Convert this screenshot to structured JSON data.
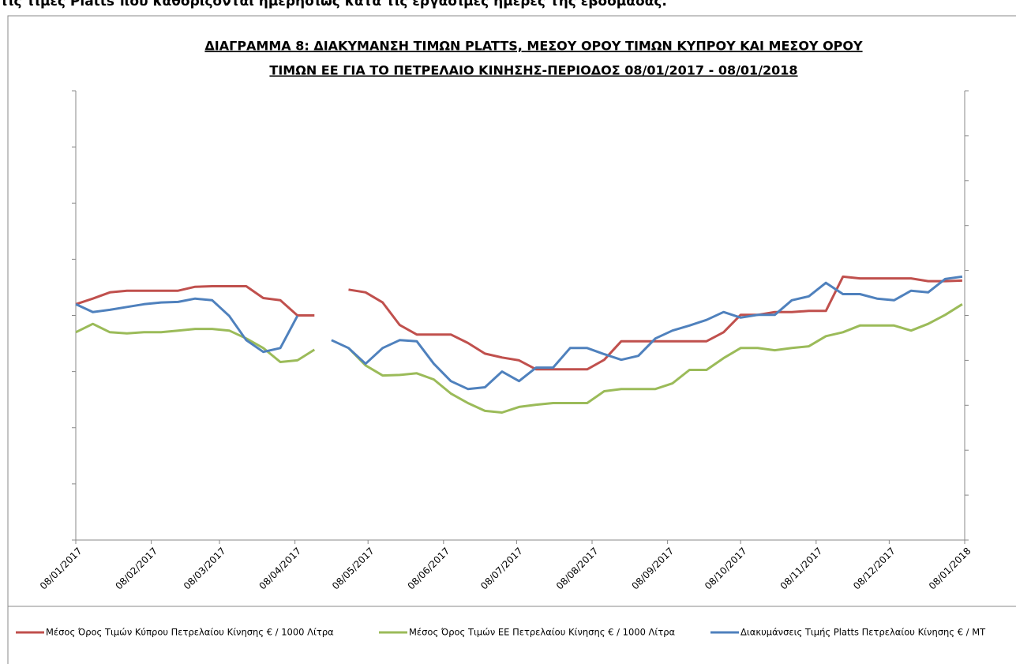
{
  "header": "τις τιμές Platts που καθορίζονται ημερησίως κατά τις εργάσιμες ημέρες της εβδομάδας.",
  "chart_data": {
    "type": "line",
    "title": [
      "ΔΙΑΓΡΑΜΜΑ 8: ΔΙΑΚΥΜΑΝΣΗ ΤΙΜΩΝ PLATTS, ΜΕΣΟΥ ΟΡΟΥ ΤΙΜΩΝ ΚΥΠΡΟΥ ΚΑΙ ΜΕΣΟΥ ΟΡΟΥ",
      "ΤΙΜΩΝ ΕΕ ΓΙΑ ΤΟ ΠΕΤΡΕΛΑΙΟ ΚΙΝΗΣΗΣ-ΠΕΡΙΟΔΟΣ  08/01/2017 - 08/01/2018"
    ],
    "x": [
      "08/01/2017",
      "15/01/2017",
      "22/01/2017",
      "29/01/2017",
      "05/02/2017",
      "12/02/2017",
      "19/02/2017",
      "26/02/2017",
      "05/03/2017",
      "12/03/2017",
      "19/03/2017",
      "26/03/2017",
      "02/04/2017",
      "09/04/2017",
      "16/04/2017",
      "23/04/2017",
      "30/04/2017",
      "07/05/2017",
      "14/05/2017",
      "21/05/2017",
      "28/05/2017",
      "04/06/2017",
      "11/06/2017",
      "18/06/2017",
      "25/06/2017",
      "02/07/2017",
      "09/07/2017",
      "16/07/2017",
      "23/07/2017",
      "30/07/2017",
      "06/08/2017",
      "13/08/2017",
      "20/08/2017",
      "27/08/2017",
      "03/09/2017",
      "10/09/2017",
      "17/09/2017",
      "24/09/2017",
      "01/10/2017",
      "08/10/2017",
      "15/10/2017",
      "22/10/2017",
      "29/10/2017",
      "05/11/2017",
      "12/11/2017",
      "19/11/2017",
      "26/11/2017",
      "03/12/2017",
      "10/12/2017",
      "17/12/2017",
      "24/12/2017",
      "31/12/2017",
      "07/01/2018"
    ],
    "xlim": [
      "08/01/2017",
      "08/01/2018"
    ],
    "xticks": [
      "08/01/2017",
      "08/02/2017",
      "08/03/2017",
      "08/04/2017",
      "08/05/2017",
      "08/06/2017",
      "08/07/2017",
      "08/08/2017",
      "08/09/2017",
      "08/10/2017",
      "08/11/2017",
      "08/12/2017",
      "08/01/2018"
    ],
    "ylim": [
      0,
      8
    ],
    "yticks": [
      0,
      1,
      2,
      3,
      4,
      5,
      6,
      7,
      8
    ],
    "y2lim": [
      0,
      10
    ],
    "y2ticks": [
      0,
      1,
      2,
      3,
      4,
      5,
      6,
      7,
      8,
      9,
      10
    ],
    "series": [
      {
        "name": "Μέσος Όρος Τιμών Κύπρου Πετρελαίου Κίνησης  € / 1000 Λίτρα",
        "color": "#c0504d",
        "values": [
          4.2,
          4.3,
          4.41,
          4.44,
          4.44,
          4.44,
          4.44,
          4.51,
          4.52,
          4.52,
          4.52,
          4.31,
          4.27,
          4.0,
          4.0,
          null,
          4.46,
          4.41,
          4.23,
          3.83,
          3.66,
          3.66,
          3.66,
          3.51,
          3.32,
          3.25,
          3.2,
          3.04,
          3.04,
          3.04,
          3.04,
          3.21,
          3.54,
          3.54,
          3.54,
          3.54,
          3.54,
          3.54,
          3.7,
          4.01,
          4.01,
          4.06,
          4.06,
          4.08,
          4.08,
          4.69,
          4.66,
          4.66,
          4.66,
          4.66,
          4.61,
          4.61,
          4.62
        ]
      },
      {
        "name": "Μέσος Όρος Τιμών ΕΕ Πετρελαίου Κίνησης  € / 1000 Λίτρα",
        "color": "#9bbb59",
        "values": [
          3.7,
          3.85,
          3.7,
          3.68,
          3.7,
          3.7,
          3.73,
          3.76,
          3.76,
          3.73,
          3.59,
          3.42,
          3.17,
          3.2,
          3.39,
          null,
          3.42,
          3.11,
          2.93,
          2.94,
          2.97,
          2.86,
          2.61,
          2.44,
          2.3,
          2.27,
          2.37,
          2.41,
          2.44,
          2.44,
          2.44,
          2.65,
          2.69,
          2.69,
          2.69,
          2.79,
          3.03,
          3.03,
          3.24,
          3.42,
          3.42,
          3.38,
          3.42,
          3.45,
          3.63,
          3.7,
          3.82,
          3.82,
          3.82,
          3.73,
          3.85,
          4.01,
          4.2
        ]
      },
      {
        "name": "Διακυμάνσεις Τιμής Platts Πετρελαίου Κίνησης € / MT",
        "color": "#4f81bd",
        "values": [
          4.2,
          4.06,
          4.1,
          4.15,
          4.2,
          4.23,
          4.24,
          4.3,
          4.27,
          3.99,
          3.56,
          3.35,
          3.42,
          3.99,
          null,
          3.56,
          3.42,
          3.14,
          3.42,
          3.56,
          3.54,
          3.14,
          2.83,
          2.69,
          2.72,
          3.0,
          2.83,
          3.07,
          3.07,
          3.42,
          3.42,
          3.31,
          3.21,
          3.28,
          3.59,
          3.73,
          3.82,
          3.92,
          4.06,
          3.96,
          4.01,
          4.01,
          4.27,
          4.34,
          4.58,
          4.38,
          4.38,
          4.3,
          4.27,
          4.44,
          4.41,
          4.65,
          4.69
        ]
      }
    ]
  }
}
